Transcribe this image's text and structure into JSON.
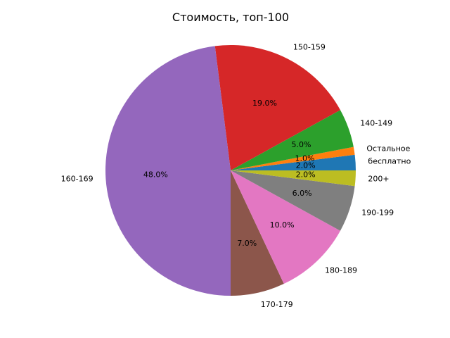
{
  "chart_data": {
    "type": "pie",
    "title": "Стоимость, топ-100",
    "start_angle_deg": 0,
    "direction": "counterclockwise",
    "slices": [
      {
        "label": "бесплатно",
        "value": 2.0,
        "pct_label": "2.0%",
        "color": "#1f77b4"
      },
      {
        "label": "Остальное",
        "value": 1.0,
        "pct_label": "1.0%",
        "color": "#ff7f0e"
      },
      {
        "label": "140-149",
        "value": 5.0,
        "pct_label": "5.0%",
        "color": "#2ca02c"
      },
      {
        "label": "150-159",
        "value": 19.0,
        "pct_label": "19.0%",
        "color": "#d62728"
      },
      {
        "label": "160-169",
        "value": 48.0,
        "pct_label": "48.0%",
        "color": "#9467bd"
      },
      {
        "label": "170-179",
        "value": 7.0,
        "pct_label": "7.0%",
        "color": "#8c564b"
      },
      {
        "label": "180-189",
        "value": 10.0,
        "pct_label": "10.0%",
        "color": "#e377c2"
      },
      {
        "label": "190-199",
        "value": 6.0,
        "pct_label": "6.0%",
        "color": "#7f7f7f"
      },
      {
        "label": "200+",
        "value": 2.0,
        "pct_label": "2.0%",
        "color": "#bcbd22"
      }
    ]
  }
}
